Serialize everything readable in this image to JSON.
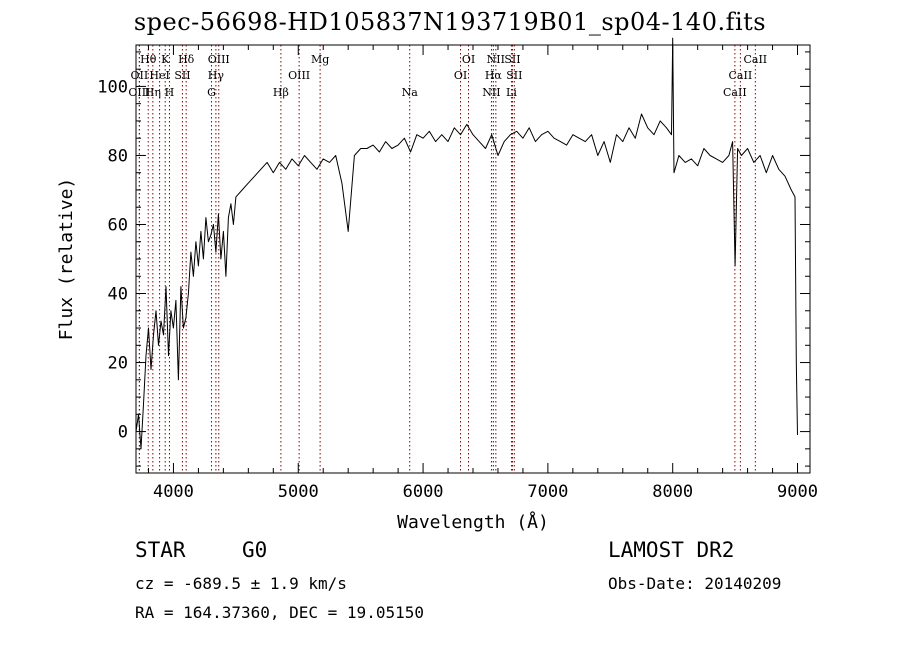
{
  "title": "spec-56698-HD105837N193719B01_sp04-140.fits",
  "info": {
    "class": "STAR",
    "subclass": "G0",
    "survey": "LAMOST DR2",
    "cz": "cz = -689.5 ± 1.9 km/s",
    "obs_date": "Obs-Date: 20140209",
    "radec": "RA = 164.37360, DEC =  19.05150"
  },
  "chart_data": {
    "type": "line",
    "title": "spec-56698-HD105837N193719B01_sp04-140.fits",
    "xlabel": "Wavelength (Å)",
    "ylabel": "Flux (relative)",
    "xlim": [
      3700,
      9100
    ],
    "ylim": [
      -12,
      112
    ],
    "xticks": [
      4000,
      5000,
      6000,
      7000,
      8000,
      9000
    ],
    "yticks": [
      0,
      20,
      40,
      60,
      80,
      100
    ],
    "grid": false,
    "line_color": "#000000",
    "marker_color": "#8b0000",
    "lines": [
      {
        "name": "Hθ",
        "wavelength": 3798,
        "row": 0
      },
      {
        "name": "OII",
        "wavelength": 3727,
        "row": 1
      },
      {
        "name": "OIII",
        "wavelength": 3727,
        "row": 2
      },
      {
        "name": "K",
        "wavelength": 3934,
        "row": 0
      },
      {
        "name": "HeI",
        "wavelength": 3889,
        "row": 1
      },
      {
        "name": "Hη",
        "wavelength": 3835,
        "row": 2
      },
      {
        "name": "H",
        "wavelength": 3968,
        "row": 2
      },
      {
        "name": "Hδ",
        "wavelength": 4102,
        "row": 0
      },
      {
        "name": "SII",
        "wavelength": 4072,
        "row": 1
      },
      {
        "name": "OIII",
        "wavelength": 4363,
        "row": 0
      },
      {
        "name": "Hγ",
        "wavelength": 4340,
        "row": 1
      },
      {
        "name": "G",
        "wavelength": 4305,
        "row": 2
      },
      {
        "name": "Hβ",
        "wavelength": 4861,
        "row": 2
      },
      {
        "name": "OIII",
        "wavelength": 5007,
        "row": 1
      },
      {
        "name": "Mg",
        "wavelength": 5175,
        "row": 0
      },
      {
        "name": "Na",
        "wavelength": 5893,
        "row": 2
      },
      {
        "name": "OI",
        "wavelength": 6364,
        "row": 0
      },
      {
        "name": "OI",
        "wavelength": 6300,
        "row": 1
      },
      {
        "name": "NII",
        "wavelength": 6583,
        "row": 0
      },
      {
        "name": "Hα",
        "wavelength": 6563,
        "row": 1
      },
      {
        "name": "NII",
        "wavelength": 6548,
        "row": 2
      },
      {
        "name": "SII",
        "wavelength": 6716,
        "row": 0
      },
      {
        "name": "SII",
        "wavelength": 6731,
        "row": 1
      },
      {
        "name": "Li",
        "wavelength": 6708,
        "row": 2
      },
      {
        "name": "CaII",
        "wavelength": 8662,
        "row": 0
      },
      {
        "name": "CaII",
        "wavelength": 8542,
        "row": 1
      },
      {
        "name": "CaII",
        "wavelength": 8498,
        "row": 2
      }
    ],
    "series": [
      {
        "x": [
          3700,
          3720,
          3740,
          3760,
          3780,
          3800,
          3820,
          3840,
          3860,
          3880,
          3900,
          3920,
          3940,
          3960,
          3980,
          4000,
          4020,
          4040,
          4060,
          4080,
          4100,
          4120,
          4140,
          4160,
          4180,
          4200,
          4220,
          4240,
          4260,
          4280,
          4300,
          4320,
          4340,
          4360,
          4380,
          4400,
          4420,
          4440,
          4460,
          4480,
          4500,
          4550,
          4600,
          4650,
          4700,
          4750,
          4800,
          4850,
          4900,
          4950,
          5000,
          5050,
          5100,
          5150,
          5200,
          5250,
          5300,
          5350,
          5400,
          5450,
          5500,
          5550,
          5600,
          5650,
          5700,
          5750,
          5800,
          5850,
          5900,
          5950,
          6000,
          6050,
          6100,
          6150,
          6200,
          6250,
          6300,
          6350,
          6400,
          6450,
          6500,
          6550,
          6600,
          6650,
          6700,
          6750,
          6800,
          6850,
          6900,
          6950,
          7000,
          7050,
          7100,
          7150,
          7200,
          7250,
          7300,
          7350,
          7400,
          7450,
          7500,
          7550,
          7600,
          7650,
          7700,
          7750,
          7800,
          7850,
          7900,
          7950,
          7990,
          8000,
          8010,
          8050,
          8100,
          8150,
          8200,
          8250,
          8300,
          8350,
          8400,
          8450,
          8480,
          8500,
          8520,
          8550,
          8600,
          8650,
          8700,
          8750,
          8800,
          8850,
          8900,
          8950,
          8980,
          8990,
          9000
        ],
        "y": [
          0,
          5,
          -5,
          8,
          22,
          30,
          18,
          28,
          35,
          25,
          32,
          28,
          42,
          22,
          35,
          30,
          38,
          15,
          42,
          30,
          33,
          40,
          52,
          45,
          55,
          48,
          58,
          50,
          62,
          55,
          57,
          60,
          52,
          63,
          50,
          58,
          45,
          62,
          66,
          60,
          68,
          70,
          72,
          74,
          76,
          78,
          75,
          78,
          76,
          79,
          77,
          80,
          78,
          76,
          79,
          78,
          80,
          72,
          58,
          80,
          82,
          82,
          83,
          81,
          84,
          82,
          83,
          85,
          81,
          86,
          85,
          87,
          84,
          86,
          84,
          88,
          86,
          89,
          86,
          84,
          82,
          86,
          80,
          84,
          86,
          87,
          85,
          88,
          84,
          86,
          87,
          85,
          84,
          83,
          86,
          85,
          84,
          86,
          80,
          84,
          78,
          86,
          84,
          88,
          85,
          92,
          88,
          86,
          90,
          88,
          86,
          114,
          75,
          80,
          78,
          79,
          77,
          82,
          80,
          79,
          78,
          80,
          84,
          48,
          82,
          80,
          82,
          78,
          80,
          75,
          80,
          76,
          74,
          70,
          68,
          20,
          -1
        ]
      }
    ]
  }
}
